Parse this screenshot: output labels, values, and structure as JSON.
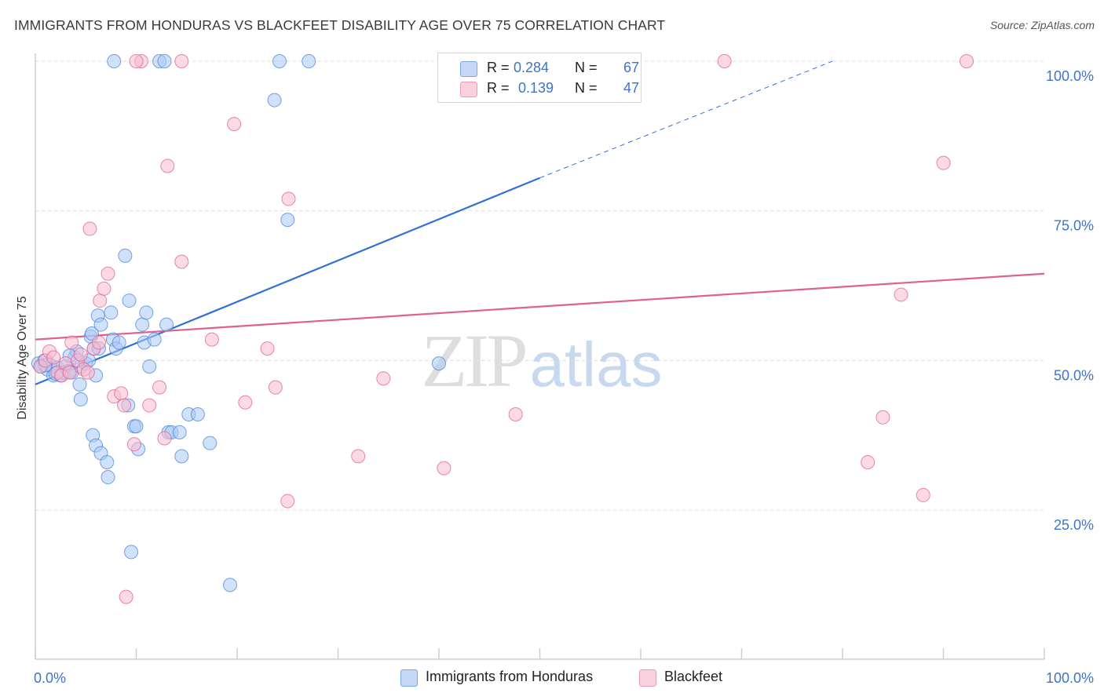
{
  "header": {
    "title": "IMMIGRANTS FROM HONDURAS VS BLACKFEET DISABILITY AGE OVER 75 CORRELATION CHART",
    "source": "Source: ZipAtlas.com"
  },
  "watermark": {
    "part1": "ZIP",
    "part2": "atlas"
  },
  "legend": {
    "rows": [
      {
        "r_label": "R =",
        "r_value": "0.284",
        "n_label": "N =",
        "n_value": "67",
        "color": "#a9c8f5"
      },
      {
        "r_label": "R =",
        "r_value": "0.139",
        "n_label": "N =",
        "n_value": "47",
        "color": "#f7bcd0"
      }
    ]
  },
  "bottom_legend": {
    "items": [
      {
        "label": "Immigrants from Honduras",
        "color": "#a9c8f5"
      },
      {
        "label": "Blackfeet",
        "color": "#f7bcd0"
      }
    ]
  },
  "chart_data": {
    "type": "scatter",
    "title": "IMMIGRANTS FROM HONDURAS VS BLACKFEET DISABILITY AGE OVER 75 CORRELATION CHART",
    "xlabel": "",
    "ylabel": "Disability Age Over 75",
    "xlim": [
      0,
      100
    ],
    "ylim": [
      0,
      100
    ],
    "x_tick_labels": [
      "0.0%",
      "100.0%"
    ],
    "y_ticks": [
      25,
      50,
      75,
      100
    ],
    "y_tick_labels": [
      "25.0%",
      "50.0%",
      "75.0%",
      "100.0%"
    ],
    "grid": true,
    "legend_position": "top-center",
    "series": [
      {
        "name": "Immigrants from Honduras",
        "color": "#4a86d8",
        "fill": "#a9c8f5",
        "r": 0.284,
        "n": 67,
        "trend": {
          "x": [
            0,
            50
          ],
          "y": [
            46.0,
            80.5
          ],
          "dashed_extension_to": [
            79,
            100
          ]
        },
        "points": [
          [
            0.3,
            49.5
          ],
          [
            0.6,
            49.0
          ],
          [
            0.9,
            50.0
          ],
          [
            1.2,
            48.5
          ],
          [
            1.5,
            49.2
          ],
          [
            1.8,
            47.5
          ],
          [
            2.2,
            48.8
          ],
          [
            2.5,
            47.5
          ],
          [
            2.8,
            48.0
          ],
          [
            3.0,
            49.0
          ],
          [
            3.3,
            48.2
          ],
          [
            3.6,
            48.0
          ],
          [
            3.9,
            50.5
          ],
          [
            4.1,
            51.5
          ],
          [
            4.5,
            49.0
          ],
          [
            4.4,
            46.0
          ],
          [
            4.5,
            43.5
          ],
          [
            5.0,
            49.5
          ],
          [
            5.3,
            50.0
          ],
          [
            5.5,
            54.0
          ],
          [
            5.6,
            54.5
          ],
          [
            5.8,
            52.0
          ],
          [
            6.0,
            47.5
          ],
          [
            6.2,
            57.5
          ],
          [
            6.5,
            56.0
          ],
          [
            6.3,
            52.0
          ],
          [
            5.7,
            37.5
          ],
          [
            6.0,
            35.8
          ],
          [
            6.5,
            34.5
          ],
          [
            7.1,
            33.0
          ],
          [
            7.2,
            30.5
          ],
          [
            7.5,
            58.0
          ],
          [
            7.7,
            53.5
          ],
          [
            8.0,
            52.0
          ],
          [
            8.3,
            53.0
          ],
          [
            8.9,
            67.5
          ],
          [
            9.3,
            60.0
          ],
          [
            9.8,
            39.0
          ],
          [
            10.0,
            39.0
          ],
          [
            10.2,
            35.2
          ],
          [
            10.6,
            56.0
          ],
          [
            10.8,
            53.0
          ],
          [
            11.0,
            58.0
          ],
          [
            11.3,
            49.0
          ],
          [
            11.8,
            53.5
          ],
          [
            13.0,
            56.0
          ],
          [
            13.2,
            38.0
          ],
          [
            13.5,
            38.0
          ],
          [
            14.3,
            38.0
          ],
          [
            14.5,
            34.0
          ],
          [
            15.2,
            41.0
          ],
          [
            16.1,
            41.0
          ],
          [
            17.3,
            36.2
          ],
          [
            9.5,
            18.0
          ],
          [
            19.3,
            12.5
          ],
          [
            23.7,
            93.5
          ],
          [
            25.0,
            73.5
          ],
          [
            7.8,
            100.0
          ],
          [
            12.3,
            100.0
          ],
          [
            12.8,
            100.0
          ],
          [
            24.2,
            100.0
          ],
          [
            27.1,
            100.0
          ],
          [
            9.2,
            42.5
          ],
          [
            40.0,
            49.5
          ],
          [
            2.0,
            47.8
          ],
          [
            1.0,
            49.2
          ],
          [
            3.4,
            50.8
          ]
        ]
      },
      {
        "name": "Blackfeet",
        "color": "#e0608f",
        "fill": "#f7bcd0",
        "r": 0.139,
        "n": 47,
        "trend": {
          "x": [
            0,
            100
          ],
          "y": [
            53.5,
            64.5
          ]
        },
        "points": [
          [
            0.5,
            49.0
          ],
          [
            1.0,
            50.0
          ],
          [
            1.4,
            51.5
          ],
          [
            1.8,
            50.5
          ],
          [
            2.2,
            48.0
          ],
          [
            2.6,
            47.5
          ],
          [
            3.0,
            49.5
          ],
          [
            3.4,
            48.0
          ],
          [
            3.6,
            53.0
          ],
          [
            4.2,
            50.0
          ],
          [
            4.5,
            51.0
          ],
          [
            4.8,
            48.5
          ],
          [
            5.2,
            48.0
          ],
          [
            5.8,
            52.0
          ],
          [
            6.3,
            53.0
          ],
          [
            5.4,
            72.0
          ],
          [
            6.4,
            60.0
          ],
          [
            6.8,
            62.0
          ],
          [
            7.2,
            64.5
          ],
          [
            7.8,
            44.0
          ],
          [
            8.5,
            44.5
          ],
          [
            8.8,
            42.5
          ],
          [
            9.8,
            36.0
          ],
          [
            11.3,
            42.5
          ],
          [
            12.3,
            45.5
          ],
          [
            12.8,
            37.0
          ],
          [
            13.1,
            82.5
          ],
          [
            14.5,
            66.5
          ],
          [
            17.5,
            53.5
          ],
          [
            19.7,
            89.5
          ],
          [
            20.8,
            43.0
          ],
          [
            23.0,
            52.0
          ],
          [
            23.8,
            45.5
          ],
          [
            25.1,
            77.0
          ],
          [
            25.0,
            26.5
          ],
          [
            32.0,
            34.0
          ],
          [
            34.5,
            47.0
          ],
          [
            40.5,
            32.0
          ],
          [
            47.6,
            41.0
          ],
          [
            68.3,
            100.0
          ],
          [
            10.5,
            100.0
          ],
          [
            14.5,
            100.0
          ],
          [
            92.3,
            100.0
          ],
          [
            90.0,
            83.0
          ],
          [
            85.8,
            61.0
          ],
          [
            84.0,
            40.5
          ],
          [
            82.5,
            33.0
          ]
        ]
      },
      {
        "name": "Blackfeet-extra",
        "color": "#e0608f",
        "fill": "#f7bcd0",
        "points": [
          [
            88.0,
            27.5
          ],
          [
            9.0,
            10.5
          ],
          [
            10.0,
            100.0
          ]
        ]
      }
    ]
  }
}
